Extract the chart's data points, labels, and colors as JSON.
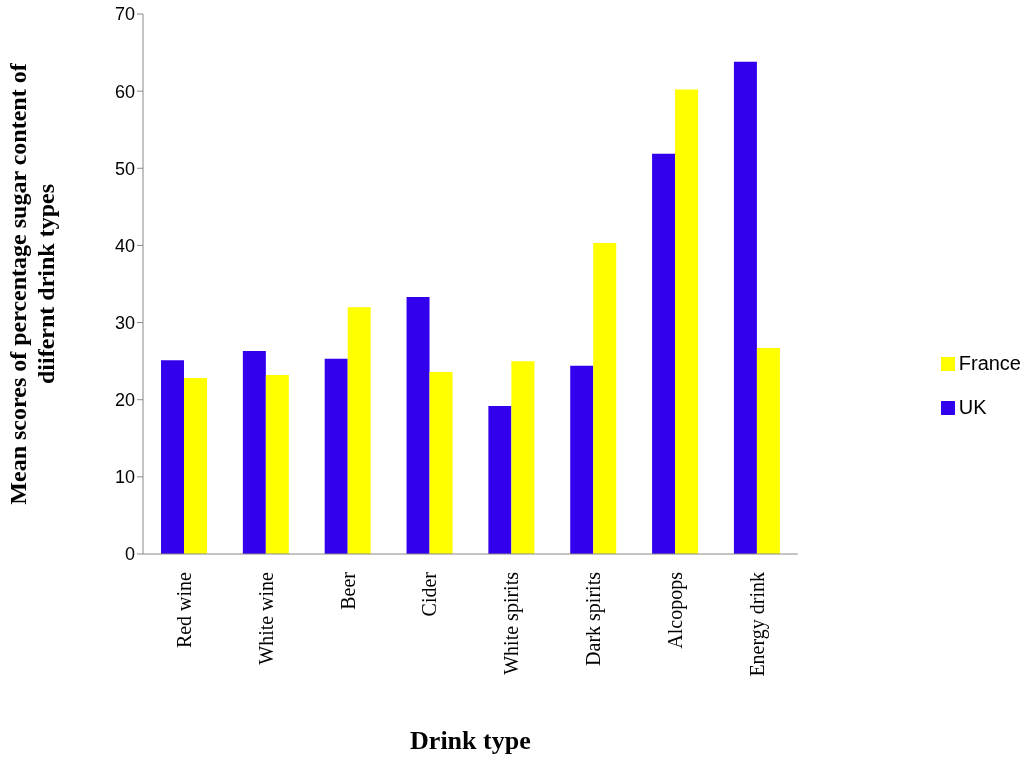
{
  "chart_data": {
    "type": "bar",
    "xlabel": "Drink type",
    "ylabel": "Mean scores of percentage sugar content of diifernt drink types",
    "categories": [
      "Red wine",
      "White wine",
      "Beer",
      "Cider",
      "White spirits",
      "Dark spirits",
      "Alcopops",
      "Energy drink"
    ],
    "series": [
      {
        "name": "UK",
        "color": "#3300ee",
        "values": [
          25.1,
          26.3,
          25.3,
          33.3,
          19.2,
          24.4,
          51.9,
          63.8
        ]
      },
      {
        "name": "France",
        "color": "#ffff00",
        "values": [
          22.8,
          23.2,
          32.0,
          23.6,
          25.0,
          40.3,
          60.2,
          26.7
        ]
      }
    ],
    "ylim": [
      0,
      70
    ],
    "yticks": [
      0,
      10,
      20,
      30,
      40,
      50,
      60,
      70
    ],
    "grid": false,
    "legend": "right"
  }
}
